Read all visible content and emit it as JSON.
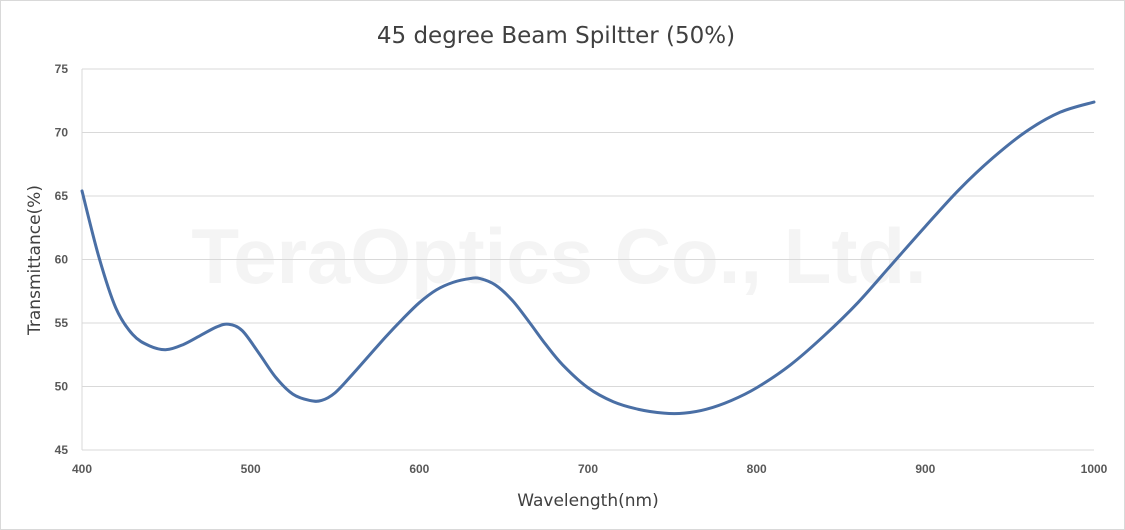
{
  "chart_data": {
    "type": "line",
    "title": "45 degree Beam Spiltter (50%)",
    "xlabel": "Wavelength(nm)",
    "ylabel": "Transmittance(%)",
    "watermark": "TeraOptics Co., Ltd.",
    "xlim": [
      400,
      1000
    ],
    "ylim": [
      45,
      75
    ],
    "xticks": [
      400,
      500,
      600,
      700,
      800,
      900,
      1000
    ],
    "yticks": [
      45,
      50,
      55,
      60,
      65,
      70,
      75
    ],
    "grid": true,
    "line_color": "#4a6fa5",
    "series": [
      {
        "x": [
          400,
          410,
          420,
          430,
          440,
          450,
          460,
          470,
          480,
          487,
          495,
          505,
          515,
          525,
          535,
          542,
          550,
          560,
          570,
          580,
          590,
          600,
          610,
          620,
          630,
          636,
          645,
          655,
          665,
          675,
          685,
          700,
          715,
          730,
          745,
          757,
          770,
          785,
          800,
          820,
          840,
          860,
          880,
          900,
          920,
          940,
          960,
          980,
          1000
        ],
        "y": [
          65.4,
          60.2,
          56.2,
          54.1,
          53.2,
          52.9,
          53.3,
          54.0,
          54.7,
          54.9,
          54.4,
          52.6,
          50.7,
          49.4,
          48.9,
          48.9,
          49.5,
          50.9,
          52.4,
          53.9,
          55.3,
          56.6,
          57.6,
          58.2,
          58.5,
          58.5,
          58.0,
          56.8,
          55.1,
          53.3,
          51.7,
          49.9,
          48.8,
          48.2,
          47.9,
          47.9,
          48.2,
          48.9,
          49.9,
          51.7,
          54.0,
          56.6,
          59.6,
          62.6,
          65.5,
          68.0,
          70.1,
          71.6,
          72.4
        ]
      }
    ]
  }
}
